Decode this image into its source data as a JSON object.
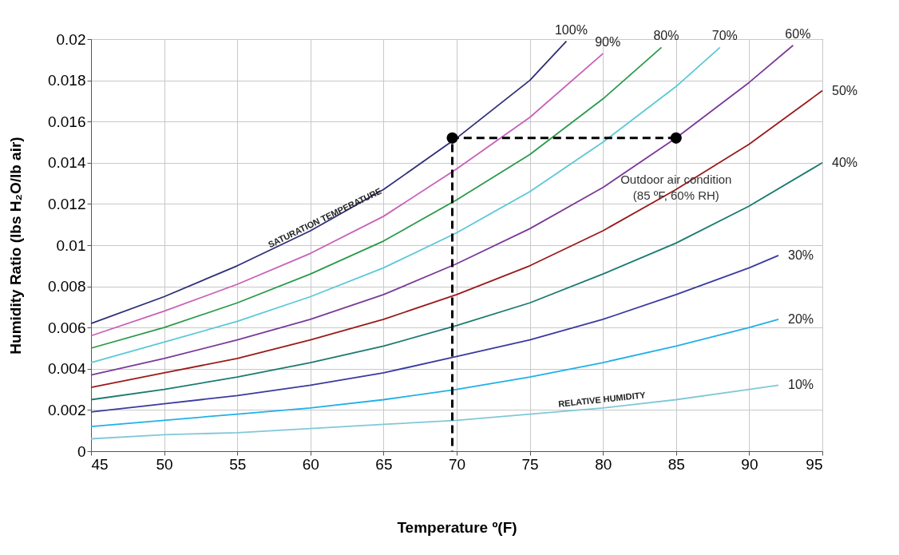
{
  "chart_data": {
    "type": "line",
    "xlabel": "Temperature º(F)",
    "ylabel": "Humidity Ratio (lbs H₂O/lb air)",
    "xlim": [
      45,
      95
    ],
    "ylim": [
      0,
      0.02
    ],
    "xticks": [
      45,
      50,
      55,
      60,
      65,
      70,
      75,
      80,
      85,
      90,
      95
    ],
    "yticks": [
      0,
      0.002,
      0.004,
      0.006,
      0.008,
      0.01,
      0.012,
      0.014,
      0.016,
      0.018,
      0.02
    ],
    "grid": true,
    "marker": "none",
    "line_style": "solid",
    "series": [
      {
        "name": "100%",
        "color": "#2e2e78",
        "x": [
          45,
          50,
          55,
          60,
          65,
          70,
          75,
          77.5
        ],
        "values": [
          0.0062,
          0.0075,
          0.009,
          0.0107,
          0.0127,
          0.0152,
          0.018,
          0.0199
        ]
      },
      {
        "name": "90%",
        "color": "#c860b8",
        "x": [
          45,
          50,
          55,
          60,
          65,
          70,
          75,
          80
        ],
        "values": [
          0.0056,
          0.0068,
          0.0081,
          0.0096,
          0.0114,
          0.0137,
          0.0162,
          0.0193
        ]
      },
      {
        "name": "80%",
        "color": "#2a9a4a",
        "x": [
          45,
          50,
          55,
          60,
          65,
          70,
          75,
          80,
          84
        ],
        "values": [
          0.005,
          0.006,
          0.0072,
          0.0086,
          0.0102,
          0.0122,
          0.0144,
          0.0171,
          0.0196
        ]
      },
      {
        "name": "70%",
        "color": "#5bc8d8",
        "x": [
          45,
          50,
          55,
          60,
          65,
          70,
          75,
          80,
          85,
          88
        ],
        "values": [
          0.0043,
          0.0053,
          0.0063,
          0.0075,
          0.0089,
          0.0106,
          0.0126,
          0.015,
          0.0177,
          0.0196
        ]
      },
      {
        "name": "60%",
        "color": "#7a3a98",
        "x": [
          45,
          50,
          55,
          60,
          65,
          70,
          75,
          80,
          85,
          90,
          93
        ],
        "values": [
          0.0037,
          0.0045,
          0.0054,
          0.0064,
          0.0076,
          0.0091,
          0.0108,
          0.0128,
          0.0152,
          0.0179,
          0.0197
        ]
      },
      {
        "name": "50%",
        "color": "#9a1a1a",
        "x": [
          45,
          50,
          55,
          60,
          65,
          70,
          75,
          80,
          85,
          90,
          95
        ],
        "values": [
          0.0031,
          0.0038,
          0.0045,
          0.0054,
          0.0064,
          0.0076,
          0.009,
          0.0107,
          0.0127,
          0.0149,
          0.0175
        ]
      },
      {
        "name": "40%",
        "color": "#1a7a70",
        "x": [
          45,
          50,
          55,
          60,
          65,
          70,
          75,
          80,
          85,
          90,
          95
        ],
        "values": [
          0.0025,
          0.003,
          0.0036,
          0.0043,
          0.0051,
          0.0061,
          0.0072,
          0.0086,
          0.0101,
          0.0119,
          0.014
        ]
      },
      {
        "name": "30%",
        "color": "#3a3aa0",
        "x": [
          45,
          50,
          55,
          60,
          65,
          70,
          75,
          80,
          85,
          90,
          92
        ],
        "values": [
          0.0019,
          0.0023,
          0.0027,
          0.0032,
          0.0038,
          0.0046,
          0.0054,
          0.0064,
          0.0076,
          0.0089,
          0.0095
        ]
      },
      {
        "name": "20%",
        "color": "#20b0e8",
        "x": [
          45,
          50,
          55,
          60,
          65,
          70,
          75,
          80,
          85,
          90,
          92
        ],
        "values": [
          0.0012,
          0.0015,
          0.0018,
          0.0021,
          0.0025,
          0.003,
          0.0036,
          0.0043,
          0.0051,
          0.006,
          0.0064
        ]
      },
      {
        "name": "10%",
        "color": "#80c8d8",
        "x": [
          45,
          50,
          55,
          60,
          65,
          70,
          75,
          80,
          85,
          90,
          92
        ],
        "values": [
          0.0006,
          0.0008,
          0.0009,
          0.0011,
          0.0013,
          0.0015,
          0.0018,
          0.0021,
          0.0025,
          0.003,
          0.0032
        ]
      },
      {
        "type": "line",
        "color": "#000000",
        "line_style": "dashed",
        "x": [
          85,
          69.7,
          69.7
        ],
        "values": [
          0.0152,
          0.0152,
          0
        ]
      },
      {
        "type": "scatter",
        "color": "#000000",
        "marker": "circle",
        "x": [
          69.7,
          85
        ],
        "values": [
          0.0152,
          0.0152
        ]
      }
    ],
    "annotations": [
      {
        "text": "SATURATION TEMPERATURE",
        "x": 61,
        "y": 0.0113
      },
      "RELATIVE HUMIDITY",
      {
        "text": "Outdoor air condition\n(85 ºF, 60% RH)",
        "x": 85,
        "y": 0.0152
      }
    ]
  }
}
